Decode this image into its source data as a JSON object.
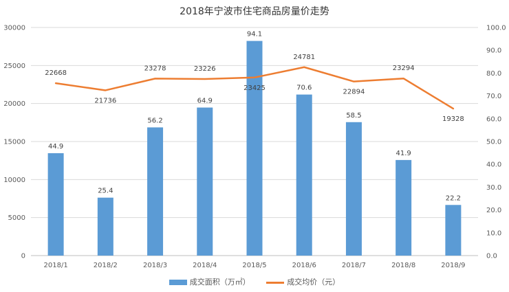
{
  "chart_data": {
    "type": "bar",
    "title": "2018年宁波市住宅商品房量价走势",
    "categories": [
      "2018/1",
      "2018/2",
      "2018/3",
      "2018/4",
      "2018/5",
      "2018/6",
      "2018/7",
      "2018/8",
      "2018/9"
    ],
    "series": [
      {
        "name": "成交面积（万㎡）",
        "type": "bar",
        "axis": "right",
        "values": [
          44.9,
          25.4,
          56.2,
          64.9,
          94.1,
          70.6,
          58.5,
          41.9,
          22.2
        ],
        "labels": [
          "44.9",
          "25.4",
          "56.2",
          "64.9",
          "94.1",
          "70.6",
          "58.5",
          "41.9",
          "22.2"
        ],
        "color": "#5B9BD5"
      },
      {
        "name": "成交均价（元）",
        "type": "line",
        "axis": "left",
        "values": [
          22668,
          21736,
          23278,
          23226,
          23425,
          24781,
          22894,
          23294,
          19328
        ],
        "labels": [
          "22668",
          "21736",
          "23278",
          "23226",
          "23425",
          "24781",
          "22894",
          "23294",
          "19328"
        ],
        "color": "#ED7D31"
      }
    ],
    "y_left": {
      "min": 0,
      "max": 30000,
      "ticks": [
        "0",
        "5000",
        "10000",
        "15000",
        "20000",
        "25000",
        "30000"
      ]
    },
    "y_right": {
      "min": 0,
      "max": 100,
      "ticks": [
        "0.0",
        "10.0",
        "20.0",
        "30.0",
        "40.0",
        "50.0",
        "60.0",
        "70.0",
        "80.0",
        "90.0",
        "100.0"
      ]
    },
    "grid": true,
    "legend_position": "bottom"
  }
}
